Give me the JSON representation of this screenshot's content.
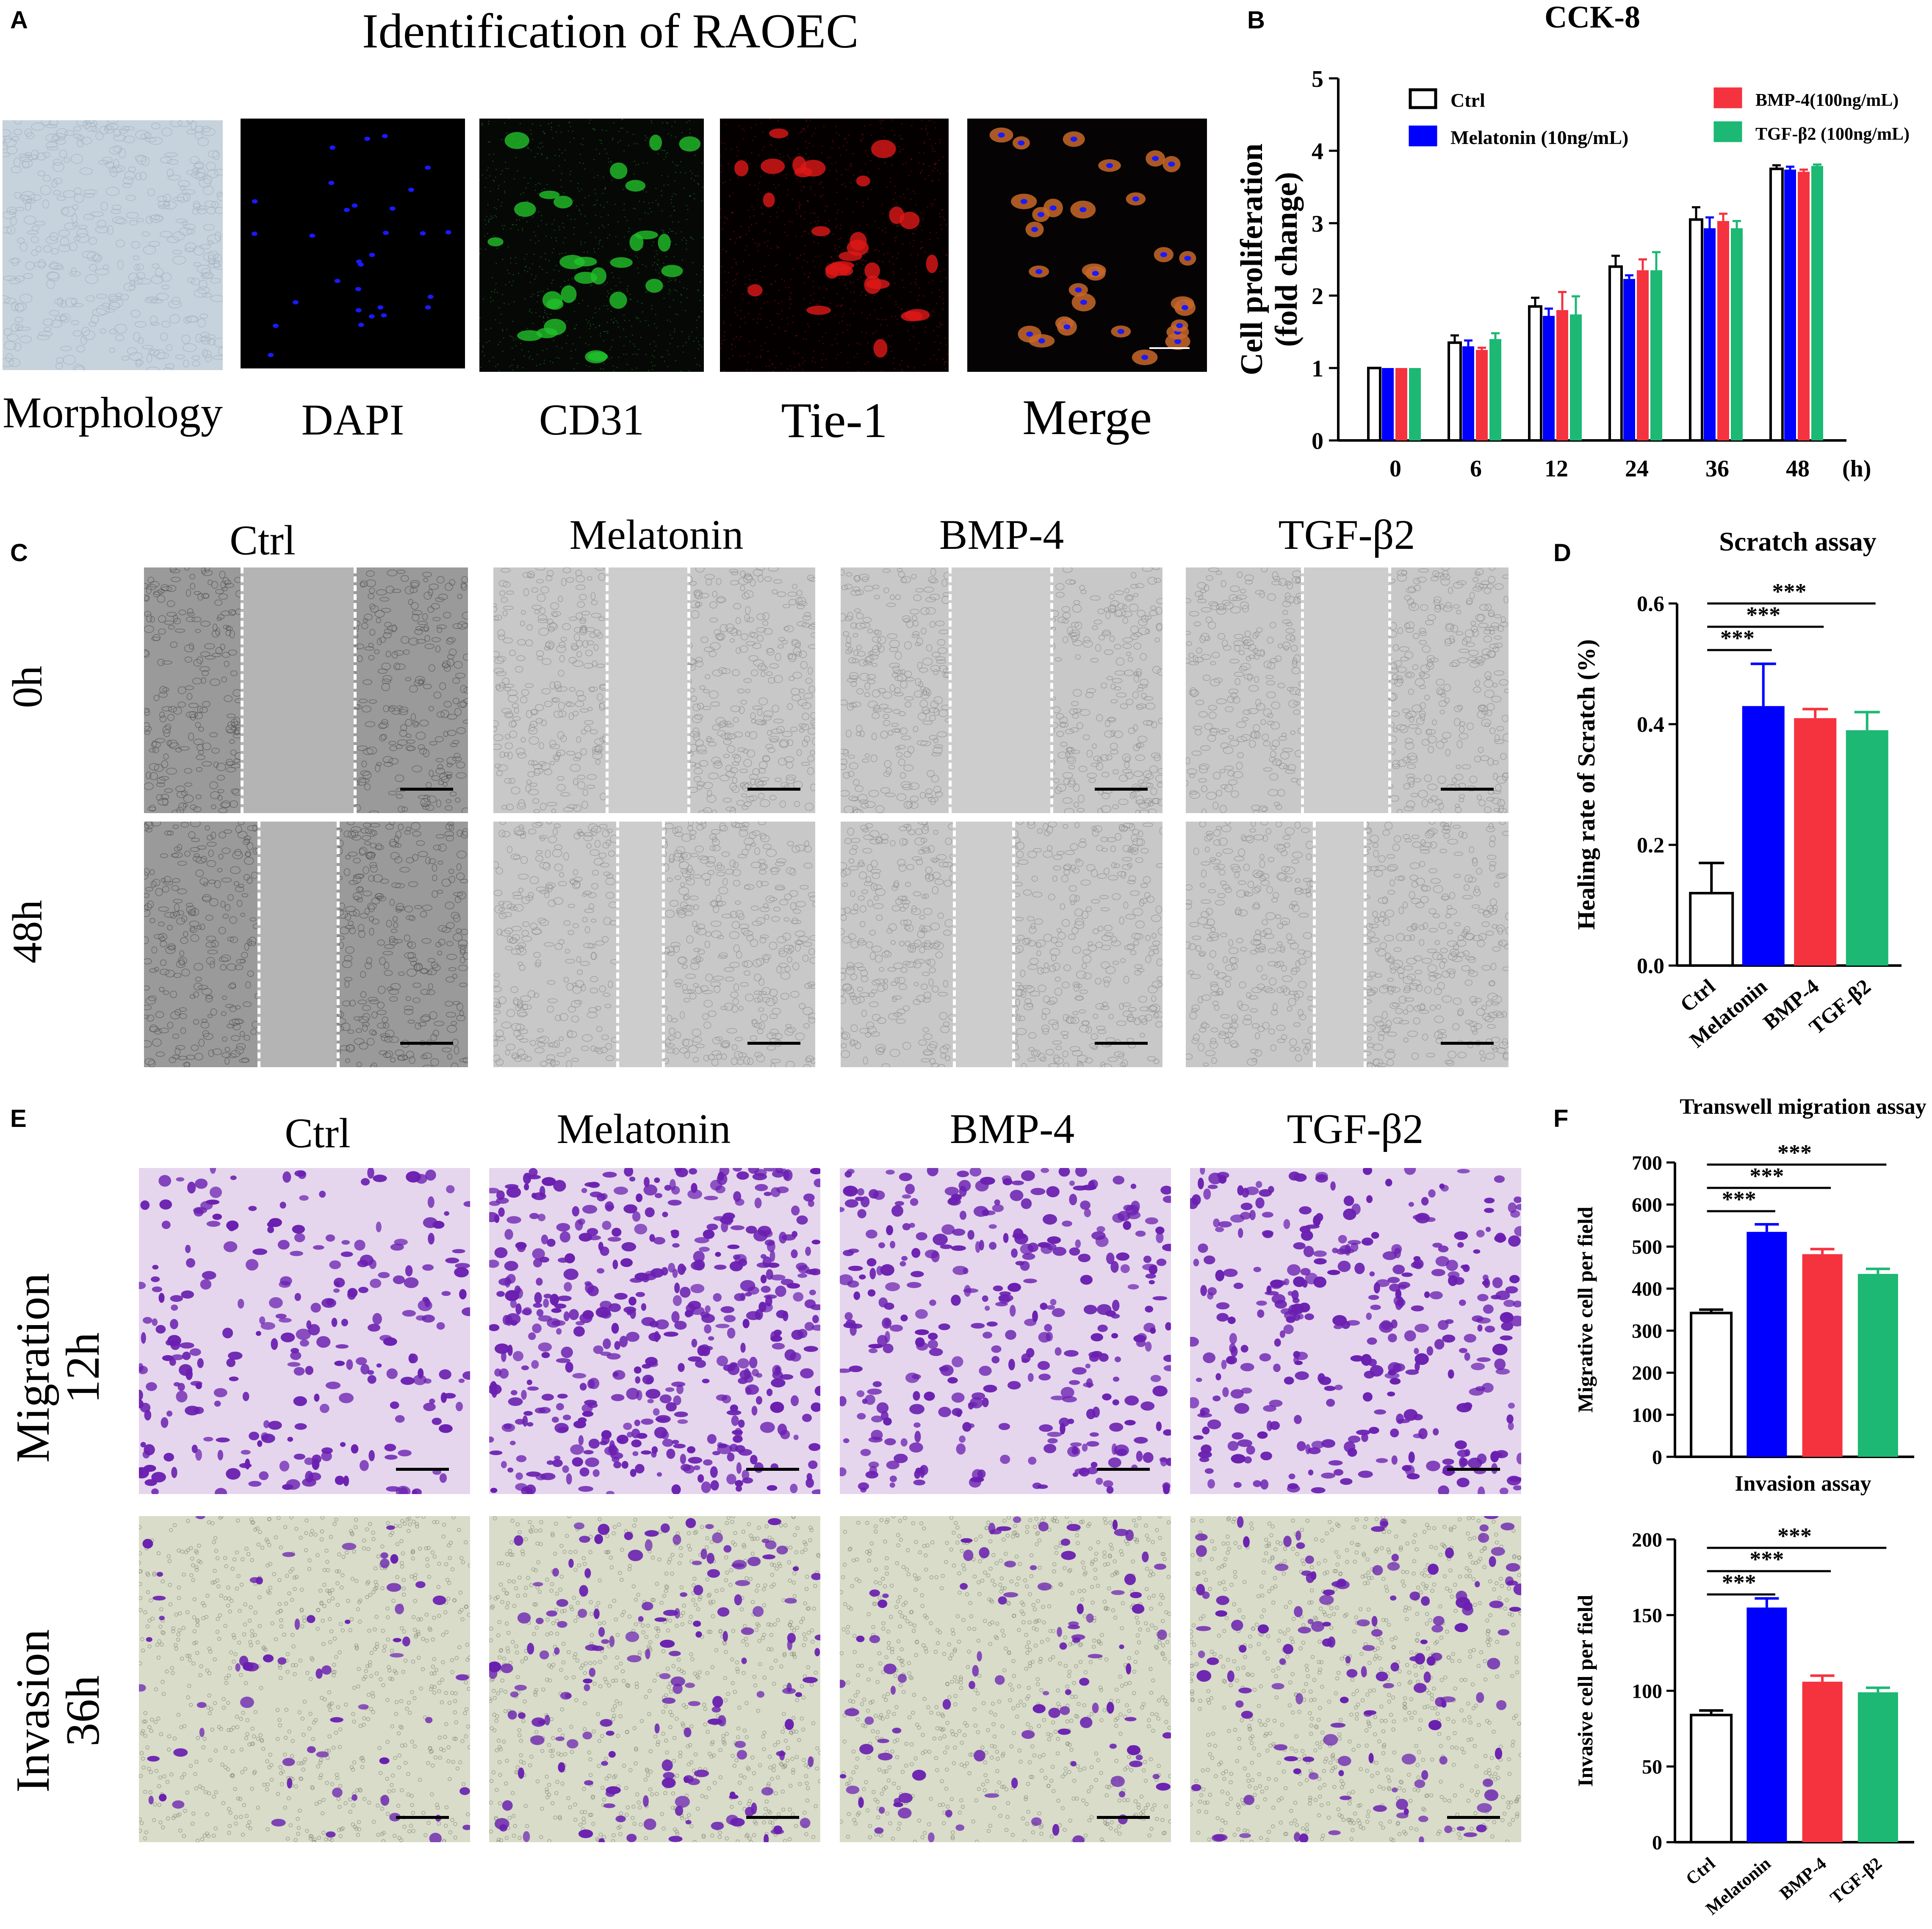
{
  "panelA": {
    "letter": "A",
    "title": "Identification of RAOEC",
    "images": [
      {
        "label": "Morphology",
        "type": "morph"
      },
      {
        "label": "DAPI",
        "type": "dapi"
      },
      {
        "label": "CD31",
        "type": "cd31"
      },
      {
        "label": "Tie-1",
        "type": "tie1"
      },
      {
        "label": "Merge",
        "type": "merge"
      }
    ]
  },
  "panelC": {
    "letter": "C",
    "columns": [
      "Ctrl",
      "Melatonin",
      "BMP-4",
      "TGF-β2"
    ],
    "rows": [
      "0h",
      "48h"
    ]
  },
  "panelE": {
    "letter": "E",
    "columns": [
      "Ctrl",
      "Melatonin",
      "BMP-4",
      "TGF-β2"
    ],
    "rows": [
      {
        "line1": "Migration",
        "line2": "12h"
      },
      {
        "line1": "Invasion",
        "line2": "36h"
      }
    ]
  },
  "colors": {
    "ctrl": "#ffffff",
    "melatonin": "#0000ff",
    "bmp4": "#f5333f",
    "tgfb2": "#1cb874",
    "dapi": "#1a1aff",
    "cd31": "#22c02a",
    "tie1": "#e01818",
    "crystal_violet": "#6a1fb0"
  },
  "chart_data": [
    {
      "id": "B",
      "letter": "B",
      "type": "bar",
      "title": "CCK-8",
      "ylabel_line1": "Cell proliferation",
      "ylabel_line2": "(fold change)",
      "xunit": "(h)",
      "categories": [
        "0",
        "6",
        "12",
        "24",
        "36",
        "48"
      ],
      "ylim": [
        0,
        5
      ],
      "yticks": [
        "0",
        "1",
        "2",
        "3",
        "4",
        "5"
      ],
      "legend": "top",
      "series": [
        {
          "name": "Ctrl",
          "color": "#ffffff",
          "values": [
            1.0,
            1.35,
            1.85,
            2.4,
            3.05,
            3.75
          ],
          "errors": [
            0.0,
            0.1,
            0.12,
            0.15,
            0.17,
            0.05
          ]
        },
        {
          "name": "Melatonin (10ng/mL)",
          "color": "#0000ff",
          "values": [
            1.0,
            1.3,
            1.72,
            2.23,
            2.93,
            3.74
          ],
          "errors": [
            0.0,
            0.08,
            0.1,
            0.05,
            0.15,
            0.04
          ]
        },
        {
          "name": "BMP-4(100ng/mL)",
          "color": "#f5333f",
          "values": [
            1.0,
            1.25,
            1.8,
            2.35,
            3.03,
            3.71
          ],
          "errors": [
            0.0,
            0.03,
            0.25,
            0.15,
            0.1,
            0.03
          ]
        },
        {
          "name": "TGF-β2 (100ng/mL)",
          "color": "#1cb874",
          "values": [
            1.0,
            1.4,
            1.74,
            2.35,
            2.93,
            3.79
          ],
          "errors": [
            0.0,
            0.08,
            0.25,
            0.25,
            0.1,
            0.02
          ]
        }
      ]
    },
    {
      "id": "D",
      "letter": "D",
      "type": "bar",
      "title": "Scratch assay",
      "ylabel": "Healing rate of Scratch  (%)",
      "categories": [
        "Ctrl",
        "Melatonin",
        "BMP-4",
        "TGF-β2"
      ],
      "colors": [
        "#ffffff",
        "#0000ff",
        "#f5333f",
        "#1cb874"
      ],
      "values": [
        0.12,
        0.43,
        0.41,
        0.39
      ],
      "errors": [
        0.05,
        0.07,
        0.015,
        0.03
      ],
      "ylim": [
        0,
        0.6
      ],
      "yticks": [
        "0.0",
        "0.2",
        "0.4",
        "0.6"
      ],
      "significance": [
        {
          "from": "Ctrl",
          "to": "Melatonin",
          "label": "***"
        },
        {
          "from": "Ctrl",
          "to": "BMP-4",
          "label": "***"
        },
        {
          "from": "Ctrl",
          "to": "TGF-β2",
          "label": "***"
        }
      ]
    },
    {
      "id": "F1",
      "letter": "F",
      "type": "bar",
      "title": "Transwell migration assay",
      "ylabel": "Migrative cell per field",
      "categories": [
        "Ctrl",
        "Melatonin",
        "BMP-4",
        "TGF-β2"
      ],
      "colors": [
        "#ffffff",
        "#0000ff",
        "#f5333f",
        "#1cb874"
      ],
      "values": [
        342,
        535,
        482,
        435
      ],
      "errors": [
        8,
        18,
        12,
        12
      ],
      "ylim": [
        0,
        700
      ],
      "yticks": [
        "0",
        "100",
        "200",
        "300",
        "400",
        "500",
        "600",
        "700"
      ],
      "significance": [
        {
          "from": "Ctrl",
          "to": "Melatonin",
          "label": "***"
        },
        {
          "from": "Ctrl",
          "to": "BMP-4",
          "label": "***"
        },
        {
          "from": "Ctrl",
          "to": "TGF-β2",
          "label": "***"
        }
      ]
    },
    {
      "id": "F2",
      "letter": "",
      "type": "bar",
      "title": "Invasion assay",
      "ylabel": "Invasive cell per field",
      "categories": [
        "Ctrl",
        "Melatonin",
        "BMP-4",
        "TGF-β2"
      ],
      "colors": [
        "#ffffff",
        "#0000ff",
        "#f5333f",
        "#1cb874"
      ],
      "values": [
        84,
        155,
        106,
        99
      ],
      "errors": [
        3,
        6,
        4,
        3
      ],
      "ylim": [
        0,
        200
      ],
      "yticks": [
        "0",
        "50",
        "100",
        "150",
        "200"
      ],
      "significance": [
        {
          "from": "Ctrl",
          "to": "Melatonin",
          "label": "***"
        },
        {
          "from": "Ctrl",
          "to": "BMP-4",
          "label": "***"
        },
        {
          "from": "Ctrl",
          "to": "TGF-β2",
          "label": "***"
        }
      ]
    }
  ]
}
